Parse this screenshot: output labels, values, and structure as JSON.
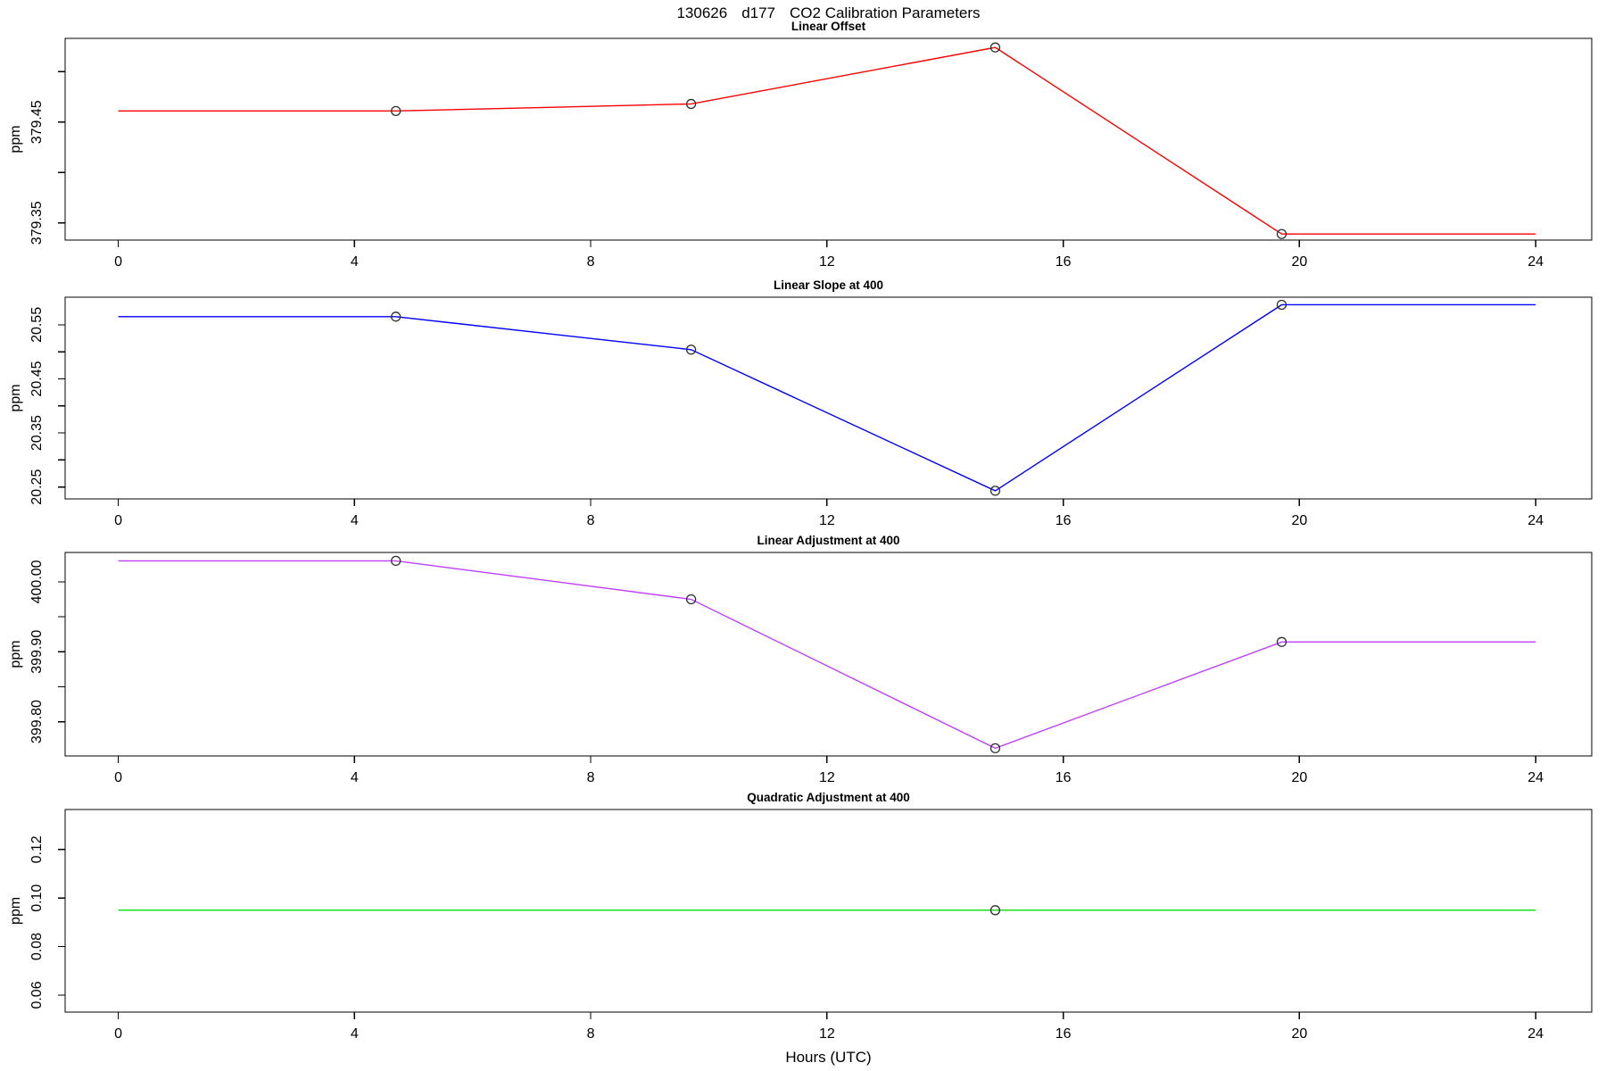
{
  "page": {
    "title": "130626   d177   CO2 Calibration Parameters",
    "title_parts": [
      "130626",
      "d177",
      "CO2 Calibration Parameters"
    ]
  },
  "x_axis": {
    "label": "Hours (UTC)",
    "ticks": [
      0,
      4,
      8,
      12,
      16,
      20,
      24
    ],
    "tick_labels": [
      "0",
      "4",
      "8",
      "12",
      "16",
      "20",
      "24"
    ],
    "xlim": [
      -0.9,
      24.95
    ]
  },
  "style": {
    "marker": "open-circle",
    "marker_color": "#303030",
    "frame_color": "#000000"
  },
  "chart_data": [
    {
      "type": "line",
      "title": "Linear Offset",
      "ylabel": "ppm",
      "color": "#ff0000",
      "ylim": [
        379.333,
        379.533
      ],
      "y_ticks": [
        379.35,
        379.4,
        379.45,
        379.5
      ],
      "y_tick_labels": [
        "379.35",
        "",
        "379.45",
        ""
      ],
      "line_x": [
        0,
        4.7,
        9.7,
        14.85,
        19.7,
        24
      ],
      "line_y": [
        379.461,
        379.461,
        379.468,
        379.524,
        379.339,
        379.339
      ],
      "points_x": [
        4.7,
        9.7,
        14.85,
        19.7
      ],
      "points_y": [
        379.461,
        379.468,
        379.524,
        379.339
      ]
    },
    {
      "type": "line",
      "title": "Linear Slope at 400",
      "ylabel": "ppm",
      "color": "#0000ff",
      "ylim": [
        20.228,
        20.601
      ],
      "y_ticks": [
        20.25,
        20.3,
        20.35,
        20.4,
        20.45,
        20.5,
        20.55
      ],
      "y_tick_labels": [
        "20.25",
        "",
        "20.35",
        "",
        "20.45",
        "",
        "20.55"
      ],
      "line_x": [
        0,
        4.7,
        9.7,
        14.85,
        19.7,
        24
      ],
      "line_y": [
        20.565,
        20.565,
        20.504,
        20.243,
        20.587,
        20.587
      ],
      "points_x": [
        4.7,
        9.7,
        14.85,
        19.7
      ],
      "points_y": [
        20.565,
        20.504,
        20.243,
        20.587
      ]
    },
    {
      "type": "line",
      "title": "Linear Adjustment at 400",
      "ylabel": "ppm",
      "color": "#bf3eff",
      "ylim": [
        399.751,
        400.042
      ],
      "y_ticks": [
        399.8,
        399.85,
        399.9,
        399.95,
        400.0
      ],
      "y_tick_labels": [
        "399.80",
        "",
        "399.90",
        "",
        "400.00"
      ],
      "line_x": [
        0,
        4.7,
        9.7,
        14.85,
        19.7,
        24
      ],
      "line_y": [
        400.03,
        400.03,
        399.975,
        399.762,
        399.914,
        399.914
      ],
      "points_x": [
        4.7,
        9.7,
        14.85,
        19.7
      ],
      "points_y": [
        400.03,
        399.975,
        399.762,
        399.914
      ]
    },
    {
      "type": "line",
      "title": "Quadratic Adjustment at 400",
      "ylabel": "ppm",
      "color": "#00dd00",
      "ylim": [
        0.053,
        0.1365
      ],
      "y_ticks": [
        0.06,
        0.08,
        0.1,
        0.12
      ],
      "y_tick_labels": [
        "0.06",
        "0.08",
        "0.10",
        "0.12"
      ],
      "line_x": [
        0,
        24
      ],
      "line_y": [
        0.095,
        0.095
      ],
      "points_x": [
        14.85
      ],
      "points_y": [
        0.095
      ]
    }
  ]
}
